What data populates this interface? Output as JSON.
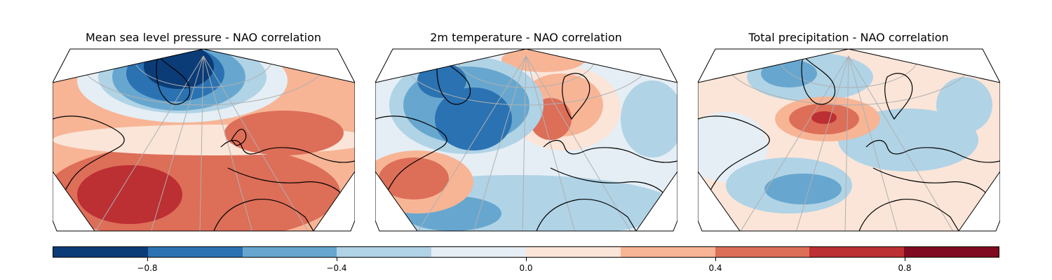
{
  "panels": [
    {
      "title": "Mean sea level pressure - NAO correlation"
    },
    {
      "title": "2m temperature - NAO correlation"
    },
    {
      "title": "Total precipitation - NAO correlation"
    }
  ],
  "colorbar": {
    "colormap": "RdBu_r",
    "levels": [
      -1.0,
      -0.8,
      -0.6,
      -0.4,
      -0.2,
      0.0,
      0.2,
      0.4,
      0.6,
      0.8,
      1.0
    ],
    "colors": [
      "#0b3c77",
      "#2a72b2",
      "#67a7cf",
      "#b0d3e6",
      "#e5eef4",
      "#fbe5d8",
      "#f7b596",
      "#dd6e58",
      "#bc2f33",
      "#7f0a21"
    ],
    "tick_labels": [
      "−0.8",
      "−0.4",
      "0.0",
      "0.4",
      "0.8"
    ],
    "tick_values": [
      -0.8,
      -0.4,
      0.0,
      0.4,
      0.8
    ]
  },
  "colors": {
    "land_outline": "#000000",
    "gridlines": "#b0b0b0",
    "neutral": "#f4f4f6"
  }
}
